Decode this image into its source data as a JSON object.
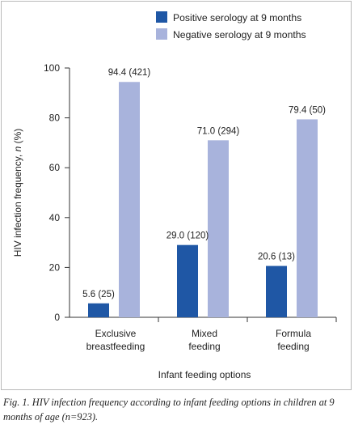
{
  "chart_data": {
    "type": "bar",
    "title": "",
    "xlabel": "Infant feeding options",
    "ylabel_parts": [
      "HIV infection frequency, ",
      "n",
      " (%)"
    ],
    "ylim": [
      0,
      100
    ],
    "yticks": [
      0,
      20,
      40,
      60,
      80,
      100
    ],
    "grid": false,
    "legend_position": "top-right",
    "categories": [
      [
        "Exclusive",
        "breastfeeding"
      ],
      [
        "Mixed",
        "feeding"
      ],
      [
        "Formula",
        "feeding"
      ]
    ],
    "series": [
      {
        "name": "Positive serology at 9 months",
        "color": "#1f57a5",
        "values": [
          5.6,
          29.0,
          20.6
        ],
        "labels": [
          "5.6 (25)",
          "29.0 (120)",
          "20.6 (13)"
        ]
      },
      {
        "name": "Negative serology at 9 months",
        "color": "#a8b3dc",
        "values": [
          94.4,
          71.0,
          79.4
        ],
        "labels": [
          "94.4 (421)",
          "71.0 (294)",
          "79.4 (50)"
        ]
      }
    ]
  },
  "caption": {
    "text": "Fig. 1. HIV infection frequency according to infant feeding options in children at 9 months of age (n=923)."
  }
}
